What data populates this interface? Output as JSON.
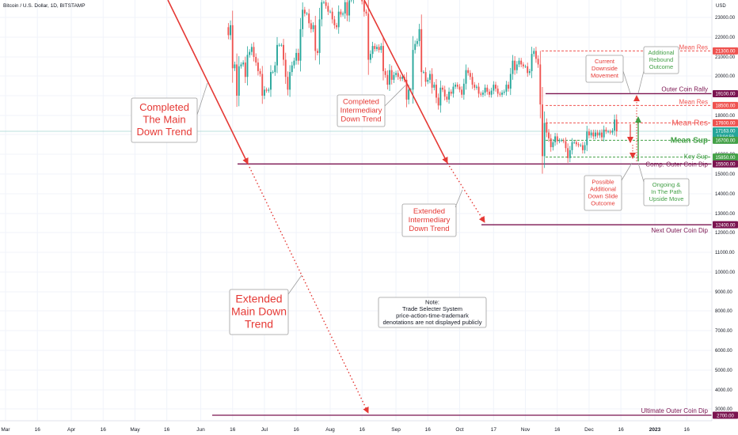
{
  "chart_data": {
    "type": "candlestick",
    "title": "Bitcoin / U.S. Dollar, 1D, BITSTAMP",
    "currency": "USD",
    "x_ticks": [
      "Mar",
      "16",
      "Apr",
      "16",
      "May",
      "16",
      "Jun",
      "16",
      "Jul",
      "16",
      "Aug",
      "16",
      "Sep",
      "16",
      "Oct",
      "17",
      "Nov",
      "16",
      "Dec",
      "16",
      "2023",
      "16"
    ],
    "y_ticks": [
      23000,
      22000,
      21000,
      20000,
      19000,
      18000,
      17000,
      16000,
      15000,
      14000,
      13000,
      12000,
      11000,
      10000,
      9000,
      8000,
      7000,
      6000,
      5000,
      4000,
      3000
    ],
    "y_tick_labels": [
      "23000.00",
      "22000.00",
      "21000.00",
      "20000.00",
      "19000.00",
      "18000.00",
      "17000.00",
      "16000.00",
      "15000.00",
      "14000.00",
      "13000.00",
      "12000.00",
      "11000.00",
      "10000.00",
      "9000.00",
      "8000.00",
      "7000.00",
      "6000.00",
      "5000.00",
      "4000.00",
      "3000.00"
    ],
    "price_levels": [
      {
        "name": "Mean Res",
        "value": 21300,
        "label": "21300.00",
        "color": "#e53935",
        "style": "dashed"
      },
      {
        "name": "Outer Coin Rally",
        "value": 19100,
        "label": "19100.00",
        "color": "#7b1450",
        "style": "solid"
      },
      {
        "name": "Mean Res",
        "value": 18500,
        "label": "18500.00",
        "color": "#e53935",
        "style": "dashed"
      },
      {
        "name": "Mean Res",
        "value": 17600,
        "label": "17600.00",
        "color": "#e53935",
        "style": "dashed"
      },
      {
        "name": "",
        "value": 17163,
        "label": "17163.00",
        "color": "#26a69a",
        "style": "solid"
      },
      {
        "name": "Mean Sup",
        "value": 16700,
        "label": "16700.00",
        "color": "#43a047",
        "style": "dashed"
      },
      {
        "name": "Key Sup",
        "value": 15850,
        "label": "15850.00",
        "color": "#43a047",
        "style": "dashed"
      },
      {
        "name": "Comp. Outer Coin Dip",
        "value": 15500,
        "label": "15500.00",
        "color": "#7b1450",
        "style": "solid"
      },
      {
        "name": "Next Outer Coin Dip",
        "value": 12400,
        "label": "12400.00",
        "color": "#7b1450",
        "style": "solid"
      },
      {
        "name": "Ultimate Outer Coin Dip",
        "value": 2700,
        "label": "2700.00",
        "color": "#7b1450",
        "style": "solid"
      }
    ],
    "countdown": "13:04:59",
    "annotations": {
      "completed_main": "Completed\nThe Main\nDown Trend",
      "completed_intermediary": "Completed\nIntermediary\nDown Trend",
      "extended_intermediary": "Extended\nIntermediary\nDown Trend",
      "extended_main": "Extended\nMain Down\nTrend",
      "current_downside": "Current\nDownside\nMovement",
      "additional_rebound": "Additional\nRebound\nOutcome",
      "possible_slide": "Possible\nAdditional\nDown Slide\nOutcome",
      "ongoing_upside": "Ongoing &\nIn The Path\nUpside Move",
      "note": "Note:\nTrade Selecter System\nprice-action-time-trademark\ndenotations are not displayed publicly"
    },
    "colors": {
      "up": "#26a69a",
      "down": "#ef5350",
      "trend": "#e53935",
      "level": "#7b1450",
      "sup": "#43a047"
    },
    "series_close": [
      {
        "date": "2022-06-13",
        "close": 22500
      },
      {
        "date": "2022-06-14",
        "close": 22100
      },
      {
        "date": "2022-06-15",
        "close": 22600
      },
      {
        "date": "2022-06-16",
        "close": 20400
      },
      {
        "date": "2022-06-17",
        "close": 20600
      },
      {
        "date": "2022-06-18",
        "close": 19000
      },
      {
        "date": "2022-06-19",
        "close": 20500
      },
      {
        "date": "2022-06-20",
        "close": 20600
      },
      {
        "date": "2022-06-21",
        "close": 20700
      },
      {
        "date": "2022-06-22",
        "close": 19950
      },
      {
        "date": "2022-06-23",
        "close": 21100
      },
      {
        "date": "2022-06-24",
        "close": 21250
      },
      {
        "date": "2022-06-25",
        "close": 21500
      },
      {
        "date": "2022-06-26",
        "close": 21000
      },
      {
        "date": "2022-06-27",
        "close": 20700
      },
      {
        "date": "2022-06-28",
        "close": 20250
      },
      {
        "date": "2022-06-29",
        "close": 20100
      },
      {
        "date": "2022-06-30",
        "close": 19000
      },
      {
        "date": "2022-07-01",
        "close": 19300
      },
      {
        "date": "2022-07-02",
        "close": 19250
      },
      {
        "date": "2022-07-03",
        "close": 19300
      },
      {
        "date": "2022-07-04",
        "close": 20200
      },
      {
        "date": "2022-07-05",
        "close": 20200
      },
      {
        "date": "2022-07-06",
        "close": 20550
      },
      {
        "date": "2022-07-07",
        "close": 21600
      },
      {
        "date": "2022-07-08",
        "close": 21600
      },
      {
        "date": "2022-07-09",
        "close": 21600
      },
      {
        "date": "2022-07-10",
        "close": 20850
      },
      {
        "date": "2022-07-11",
        "close": 19950
      },
      {
        "date": "2022-07-12",
        "close": 19300
      },
      {
        "date": "2022-07-13",
        "close": 20200
      },
      {
        "date": "2022-07-14",
        "close": 20550
      },
      {
        "date": "2022-07-15",
        "close": 20800
      },
      {
        "date": "2022-07-16",
        "close": 21200
      },
      {
        "date": "2022-07-17",
        "close": 20800
      },
      {
        "date": "2022-07-18",
        "close": 22400
      },
      {
        "date": "2022-07-19",
        "close": 23400
      },
      {
        "date": "2022-07-20",
        "close": 23200
      },
      {
        "date": "2022-07-21",
        "close": 23200
      },
      {
        "date": "2022-07-22",
        "close": 22700
      },
      {
        "date": "2022-07-23",
        "close": 22400
      },
      {
        "date": "2022-07-24",
        "close": 22600
      },
      {
        "date": "2022-07-25",
        "close": 21300
      },
      {
        "date": "2022-07-26",
        "close": 21200
      },
      {
        "date": "2022-07-27",
        "close": 22900
      },
      {
        "date": "2022-07-28",
        "close": 23800
      },
      {
        "date": "2022-07-29",
        "close": 23800
      },
      {
        "date": "2022-07-30",
        "close": 23600
      },
      {
        "date": "2022-07-31",
        "close": 23300
      },
      {
        "date": "2022-08-01",
        "close": 23300
      },
      {
        "date": "2022-08-02",
        "close": 22900
      },
      {
        "date": "2022-08-03",
        "close": 22600
      },
      {
        "date": "2022-08-04",
        "close": 22500
      },
      {
        "date": "2022-08-05",
        "close": 23300
      },
      {
        "date": "2022-08-06",
        "close": 23150
      },
      {
        "date": "2022-08-07",
        "close": 23200
      },
      {
        "date": "2022-08-08",
        "close": 23800
      },
      {
        "date": "2022-08-09",
        "close": 23100
      },
      {
        "date": "2022-08-10",
        "close": 23900
      },
      {
        "date": "2022-08-11",
        "close": 23950
      },
      {
        "date": "2022-08-12",
        "close": 24400
      },
      {
        "date": "2022-08-13",
        "close": 24450
      },
      {
        "date": "2022-08-14",
        "close": 24300
      },
      {
        "date": "2022-08-15",
        "close": 24100
      },
      {
        "date": "2022-08-16",
        "close": 23850
      },
      {
        "date": "2022-08-17",
        "close": 23300
      },
      {
        "date": "2022-08-18",
        "close": 23200
      },
      {
        "date": "2022-08-19",
        "close": 20850
      },
      {
        "date": "2022-08-20",
        "close": 21150
      },
      {
        "date": "2022-08-21",
        "close": 21550
      },
      {
        "date": "2022-08-22",
        "close": 21400
      },
      {
        "date": "2022-08-23",
        "close": 21500
      },
      {
        "date": "2022-08-24",
        "close": 21350
      },
      {
        "date": "2022-08-25",
        "close": 21550
      },
      {
        "date": "2022-08-26",
        "close": 20250
      },
      {
        "date": "2022-08-27",
        "close": 20050
      },
      {
        "date": "2022-08-28",
        "close": 19550
      },
      {
        "date": "2022-08-29",
        "close": 20300
      },
      {
        "date": "2022-08-30",
        "close": 19800
      },
      {
        "date": "2022-08-31",
        "close": 20050
      },
      {
        "date": "2022-09-01",
        "close": 20150
      },
      {
        "date": "2022-09-02",
        "close": 19950
      },
      {
        "date": "2022-09-03",
        "close": 19850
      },
      {
        "date": "2022-09-04",
        "close": 19950
      },
      {
        "date": "2022-09-05",
        "close": 19800
      },
      {
        "date": "2022-09-06",
        "close": 18800
      },
      {
        "date": "2022-09-07",
        "close": 19300
      },
      {
        "date": "2022-09-08",
        "close": 19300
      },
      {
        "date": "2022-09-09",
        "close": 21350
      },
      {
        "date": "2022-09-10",
        "close": 21650
      },
      {
        "date": "2022-09-11",
        "close": 21800
      },
      {
        "date": "2022-09-12",
        "close": 22400
      },
      {
        "date": "2022-09-13",
        "close": 20200
      },
      {
        "date": "2022-09-14",
        "close": 20200
      },
      {
        "date": "2022-09-15",
        "close": 19700
      },
      {
        "date": "2022-09-16",
        "close": 19800
      },
      {
        "date": "2022-09-17",
        "close": 20100
      },
      {
        "date": "2022-09-18",
        "close": 19400
      },
      {
        "date": "2022-09-19",
        "close": 19550
      },
      {
        "date": "2022-09-20",
        "close": 18900
      },
      {
        "date": "2022-09-21",
        "close": 18500
      },
      {
        "date": "2022-09-22",
        "close": 19400
      },
      {
        "date": "2022-09-23",
        "close": 19300
      },
      {
        "date": "2022-09-24",
        "close": 18950
      },
      {
        "date": "2022-09-25",
        "close": 18800
      },
      {
        "date": "2022-09-26",
        "close": 19200
      },
      {
        "date": "2022-09-27",
        "close": 19100
      },
      {
        "date": "2022-09-28",
        "close": 19450
      },
      {
        "date": "2022-09-29",
        "close": 19550
      },
      {
        "date": "2022-09-30",
        "close": 19450
      },
      {
        "date": "2022-10-01",
        "close": 19300
      },
      {
        "date": "2022-10-02",
        "close": 19050
      },
      {
        "date": "2022-10-03",
        "close": 19600
      },
      {
        "date": "2022-10-04",
        "close": 20300
      },
      {
        "date": "2022-10-05",
        "close": 20150
      },
      {
        "date": "2022-10-06",
        "close": 19950
      },
      {
        "date": "2022-10-07",
        "close": 19550
      },
      {
        "date": "2022-10-08",
        "close": 19400
      },
      {
        "date": "2022-10-09",
        "close": 19450
      },
      {
        "date": "2022-10-10",
        "close": 19100
      },
      {
        "date": "2022-10-11",
        "close": 19050
      },
      {
        "date": "2022-10-12",
        "close": 19150
      },
      {
        "date": "2022-10-13",
        "close": 19400
      },
      {
        "date": "2022-10-14",
        "close": 19200
      },
      {
        "date": "2022-10-15",
        "close": 19050
      },
      {
        "date": "2022-10-16",
        "close": 19250
      },
      {
        "date": "2022-10-17",
        "close": 19550
      },
      {
        "date": "2022-10-18",
        "close": 19350
      },
      {
        "date": "2022-10-19",
        "close": 19100
      },
      {
        "date": "2022-10-20",
        "close": 19050
      },
      {
        "date": "2022-10-21",
        "close": 19150
      },
      {
        "date": "2022-10-22",
        "close": 19200
      },
      {
        "date": "2022-10-23",
        "close": 19550
      },
      {
        "date": "2022-10-24",
        "close": 19350
      },
      {
        "date": "2022-10-25",
        "close": 20100
      },
      {
        "date": "2022-10-26",
        "close": 20800
      },
      {
        "date": "2022-10-27",
        "close": 20300
      },
      {
        "date": "2022-10-28",
        "close": 20600
      },
      {
        "date": "2022-10-29",
        "close": 20800
      },
      {
        "date": "2022-10-30",
        "close": 20600
      },
      {
        "date": "2022-10-31",
        "close": 20500
      },
      {
        "date": "2022-11-01",
        "close": 20500
      },
      {
        "date": "2022-11-02",
        "close": 20150
      },
      {
        "date": "2022-11-03",
        "close": 20250
      },
      {
        "date": "2022-11-04",
        "close": 21150
      },
      {
        "date": "2022-11-05",
        "close": 21300
      },
      {
        "date": "2022-11-06",
        "close": 20900
      },
      {
        "date": "2022-11-07",
        "close": 20600
      },
      {
        "date": "2022-11-08",
        "close": 18550
      },
      {
        "date": "2022-11-09",
        "close": 15900
      },
      {
        "date": "2022-11-10",
        "close": 17600
      },
      {
        "date": "2022-11-11",
        "close": 17100
      },
      {
        "date": "2022-11-12",
        "close": 16800
      },
      {
        "date": "2022-11-13",
        "close": 16350
      },
      {
        "date": "2022-11-14",
        "close": 16600
      },
      {
        "date": "2022-11-15",
        "close": 16900
      },
      {
        "date": "2022-11-16",
        "close": 16650
      },
      {
        "date": "2022-11-17",
        "close": 16700
      },
      {
        "date": "2022-11-18",
        "close": 16700
      },
      {
        "date": "2022-11-19",
        "close": 16650
      },
      {
        "date": "2022-11-20",
        "close": 16300
      },
      {
        "date": "2022-11-21",
        "close": 15800
      },
      {
        "date": "2022-11-22",
        "close": 16200
      },
      {
        "date": "2022-11-23",
        "close": 16600
      },
      {
        "date": "2022-11-24",
        "close": 16600
      },
      {
        "date": "2022-11-25",
        "close": 16500
      },
      {
        "date": "2022-11-26",
        "close": 16450
      },
      {
        "date": "2022-11-27",
        "close": 16450
      },
      {
        "date": "2022-11-28",
        "close": 16200
      },
      {
        "date": "2022-11-29",
        "close": 16450
      },
      {
        "date": "2022-11-30",
        "close": 17150
      },
      {
        "date": "2022-12-01",
        "close": 16950
      },
      {
        "date": "2022-12-02",
        "close": 17100
      },
      {
        "date": "2022-12-03",
        "close": 16900
      },
      {
        "date": "2022-12-04",
        "close": 17100
      },
      {
        "date": "2022-12-05",
        "close": 16950
      },
      {
        "date": "2022-12-06",
        "close": 17100
      },
      {
        "date": "2022-12-07",
        "close": 16850
      },
      {
        "date": "2022-12-08",
        "close": 17250
      },
      {
        "date": "2022-12-09",
        "close": 17150
      },
      {
        "date": "2022-12-10",
        "close": 17150
      },
      {
        "date": "2022-12-11",
        "close": 17100
      },
      {
        "date": "2022-12-12",
        "close": 17200
      },
      {
        "date": "2022-12-13",
        "close": 17780
      },
      {
        "date": "2022-12-14",
        "close": 17163
      }
    ]
  }
}
